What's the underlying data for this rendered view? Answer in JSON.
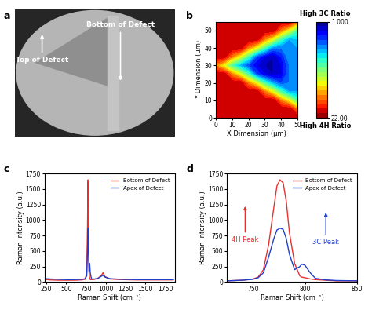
{
  "chart_data": [
    {
      "type": "image",
      "title": "a",
      "annotations": [
        {
          "text": "Top of Defect"
        },
        {
          "text": "Bottom of Defect"
        }
      ]
    },
    {
      "type": "contour",
      "title": "b",
      "x_label": "X Dimension (μm)",
      "y_label": "Y Dimension (μm)",
      "x": [
        0,
        5,
        10,
        15,
        20,
        25,
        30,
        35,
        40,
        45,
        50
      ],
      "y": [
        0,
        5,
        10,
        15,
        20,
        25,
        30,
        35,
        40,
        45,
        50,
        55
      ],
      "z": [
        [
          21,
          21,
          21,
          21,
          21,
          21,
          21,
          21,
          21,
          21,
          21
        ],
        [
          21,
          21,
          21,
          21,
          21,
          21,
          21,
          21,
          21,
          21,
          17
        ],
        [
          21,
          21,
          21,
          21,
          21,
          21,
          21,
          21,
          17,
          14,
          10
        ],
        [
          21,
          21,
          21,
          21,
          21,
          21,
          17,
          14,
          10,
          7,
          7
        ],
        [
          21,
          21,
          21,
          21,
          17,
          14,
          10,
          7,
          5,
          6,
          7
        ],
        [
          21,
          21,
          17,
          14,
          10,
          5,
          3,
          2,
          3,
          6,
          7
        ],
        [
          17,
          14,
          10,
          7,
          5,
          3,
          2,
          2,
          3,
          6,
          7
        ],
        [
          21,
          21,
          17,
          14,
          10,
          5,
          3,
          2,
          4,
          7,
          7
        ],
        [
          21,
          21,
          21,
          21,
          17,
          14,
          10,
          6,
          6,
          7,
          7
        ],
        [
          21,
          21,
          21,
          21,
          21,
          21,
          17,
          14,
          10,
          7,
          8
        ],
        [
          21,
          21,
          21,
          21,
          21,
          21,
          21,
          21,
          17,
          14,
          10
        ],
        [
          21,
          21,
          21,
          21,
          21,
          21,
          21,
          21,
          21,
          21,
          17
        ]
      ],
      "xlim": [
        0,
        50
      ],
      "ylim": [
        0,
        55
      ],
      "xticks": [
        0,
        10,
        20,
        30,
        40,
        50
      ],
      "yticks": [
        0,
        10,
        20,
        30,
        40,
        50
      ],
      "colorbar": {
        "range": [
          1,
          22
        ],
        "ticks": [
          {
            "value": 1,
            "label": "1.000"
          },
          {
            "value": 22,
            "label": "22.00"
          }
        ],
        "annotations": [
          "High 3C Ratio",
          "High 4H Ratio"
        ]
      }
    },
    {
      "type": "line",
      "title": "c",
      "x_label": "Raman Shift (cm⁻¹)",
      "y_label": "Raman Intensity (a.u.)",
      "x": [
        250,
        300,
        400,
        500,
        600,
        700,
        740,
        760,
        770,
        776,
        782,
        790,
        797,
        805,
        820,
        860,
        900,
        940,
        965,
        990,
        1050,
        1200,
        1400,
        1600,
        1850
      ],
      "series": [
        {
          "name": "Bottom of Defect",
          "color": "#e8312f",
          "values": [
            40,
            35,
            30,
            30,
            30,
            35,
            45,
            150,
            900,
            1650,
            900,
            150,
            60,
            40,
            40,
            45,
            60,
            100,
            150,
            90,
            50,
            40,
            35,
            35,
            35
          ]
        },
        {
          "name": "Apex of Defect",
          "color": "#1f3fd0",
          "values": [
            55,
            50,
            45,
            40,
            40,
            45,
            55,
            100,
            500,
            870,
            500,
            180,
            300,
            150,
            50,
            50,
            60,
            90,
            110,
            80,
            55,
            45,
            40,
            40,
            40
          ]
        }
      ],
      "xlim": [
        230,
        1870
      ],
      "ylim": [
        0,
        1750
      ],
      "xticks": [
        250,
        500,
        750,
        1000,
        1250,
        1500,
        1750
      ],
      "yticks": [
        0,
        250,
        500,
        750,
        1000,
        1250,
        1500,
        1750
      ],
      "legend": "upper right"
    },
    {
      "type": "line",
      "title": "d",
      "x_label": "Raman Shift (cm⁻¹)",
      "y_label": "Raman Intensity (a.u.)",
      "x": [
        725,
        740,
        750,
        755,
        760,
        765,
        770,
        773,
        776,
        779,
        782,
        785,
        790,
        795,
        797,
        800,
        805,
        810,
        820,
        830,
        850
      ],
      "series": [
        {
          "name": "Bottom of Defect",
          "color": "#e8312f",
          "values": [
            20,
            30,
            50,
            80,
            200,
            600,
            1200,
            1550,
            1650,
            1600,
            1300,
            800,
            300,
            100,
            80,
            70,
            50,
            40,
            30,
            20,
            20
          ]
        },
        {
          "name": "Apex of Defect",
          "color": "#1f3fd0",
          "values": [
            20,
            30,
            45,
            70,
            150,
            400,
            700,
            840,
            870,
            850,
            700,
            450,
            200,
            250,
            290,
            270,
            150,
            60,
            35,
            25,
            20
          ]
        }
      ],
      "xlim": [
        725,
        850
      ],
      "ylim": [
        0,
        1750
      ],
      "xticks": [
        750,
        800,
        850
      ],
      "yticks": [
        0,
        250,
        500,
        750,
        1000,
        1250,
        1500,
        1750
      ],
      "legend": "upper right",
      "annotations": [
        {
          "text": "4H Peak",
          "color": "#e8312f"
        },
        {
          "text": "3C Peak",
          "color": "#1f3fd0"
        }
      ]
    }
  ]
}
